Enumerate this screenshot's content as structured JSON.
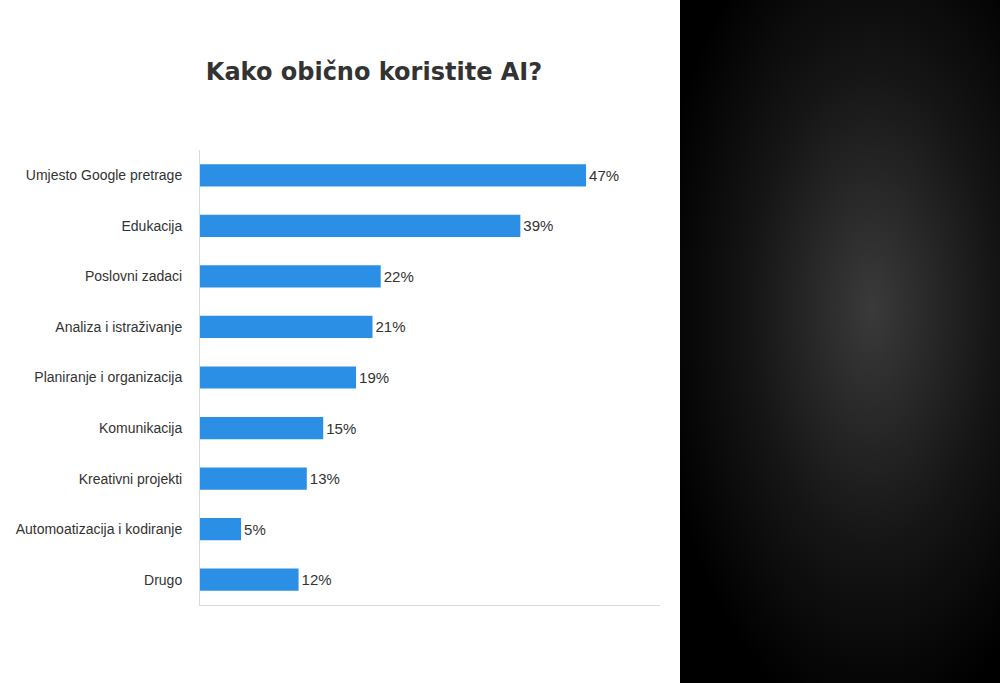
{
  "chart_data": {
    "type": "bar",
    "orientation": "horizontal",
    "title": "Kako obično koristite AI?",
    "categories": [
      "Umjesto Google pretrage",
      "Edukacija",
      "Poslovni zadaci",
      "Analiza i istraživanje",
      "Planiranje i organizacija",
      "Komunikacija",
      "Kreativni projekti",
      "Automoatizacija i kodiranje",
      "Drugo"
    ],
    "values": [
      47,
      39,
      22,
      21,
      19,
      15,
      13,
      5,
      12
    ],
    "value_labels": [
      "47%",
      "39%",
      "22%",
      "21%",
      "19%",
      "15%",
      "13%",
      "5%",
      "12%"
    ],
    "color": "#2b8fe6",
    "xlim": [
      0,
      56
    ],
    "xticks": [],
    "grid": false,
    "data_labels": true,
    "tick_labels": "y"
  }
}
